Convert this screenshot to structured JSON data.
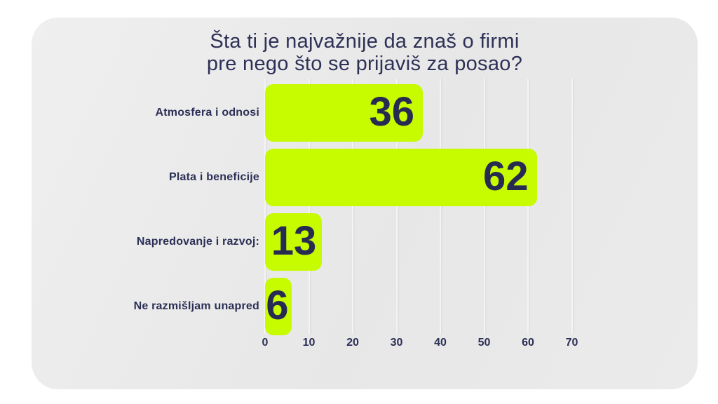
{
  "title": {
    "line1": "Šta ti je najvažnije da znaš o firmi",
    "line2": "pre nego što se prijaviš za posao?"
  },
  "chart_data": {
    "type": "bar",
    "orientation": "horizontal",
    "title": "Šta ti je najvažnije da znaš o firmi pre nego što se prijaviš za posao?",
    "categories": [
      "Atmosfera i odnosi",
      "Plata i beneficije",
      "Napredovanje i razvoj:",
      "Ne razmišljam unapred"
    ],
    "values": [
      36,
      62,
      13,
      6
    ],
    "value_labels": [
      "36",
      "62",
      "13",
      "6"
    ],
    "xticks": [
      "0",
      "10",
      "20",
      "30",
      "40",
      "50",
      "60",
      "70"
    ],
    "xlim": [
      0,
      70
    ],
    "grid": true,
    "legend": false,
    "xlabel": "",
    "ylabel": ""
  },
  "colors": {
    "bar": "#c6fb00",
    "value_text": "#272b52",
    "label_text": "#2b2f55",
    "title_text": "#2e3156",
    "card_background": "#e9e9e9",
    "page_background": "#ffffff"
  }
}
